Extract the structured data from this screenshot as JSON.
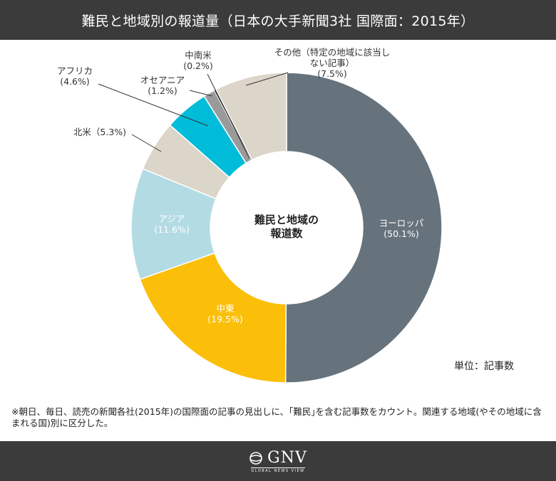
{
  "header": {
    "title": "難民と地域別の報道量（日本の大手新聞3社 国際面：2015年）"
  },
  "chart_data": {
    "type": "pie",
    "donut": true,
    "center_label": [
      "難民と地域の",
      "報道数"
    ],
    "slices": [
      {
        "label": [
          "ヨーロッパ",
          "(50.1%)"
        ],
        "value": 50.1,
        "color": "#66737c"
      },
      {
        "label": [
          "中東",
          "(19.5%)"
        ],
        "value": 19.5,
        "color": "#fbbf0a"
      },
      {
        "label": [
          "アジア",
          "(11.6%)"
        ],
        "value": 11.6,
        "color": "#b3dbe4"
      },
      {
        "label": [
          "北米（5.3%)"
        ],
        "value": 5.3,
        "color": "#dcd5c9"
      },
      {
        "label": [
          "アフリカ",
          "(4.6%)"
        ],
        "value": 4.6,
        "color": "#00bcd8"
      },
      {
        "label": [
          "オセアニア",
          "(1.2%)"
        ],
        "value": 1.2,
        "color": "#9a9a9a"
      },
      {
        "label": [
          "中南米",
          "(0.2%)"
        ],
        "value": 0.2,
        "color": "#1a1a1a"
      },
      {
        "label": [
          "その他（特定の地域に該当し",
          "ない記事）",
          "(7.5%)"
        ],
        "value": 7.5,
        "color": "#dcd5c9"
      }
    ]
  },
  "unit_note": "単位：記事数",
  "footnote": "※朝日、毎日、読売の新聞各社(2015年)の国際面の記事の見出しに、｢難民｣を含む記事数をカウント。関連する地域(やその地域に含まれる国)別に区分した。",
  "footer": {
    "logo_text": "GNV",
    "logo_subtext": "GLOBAL NEWS VIEW"
  }
}
